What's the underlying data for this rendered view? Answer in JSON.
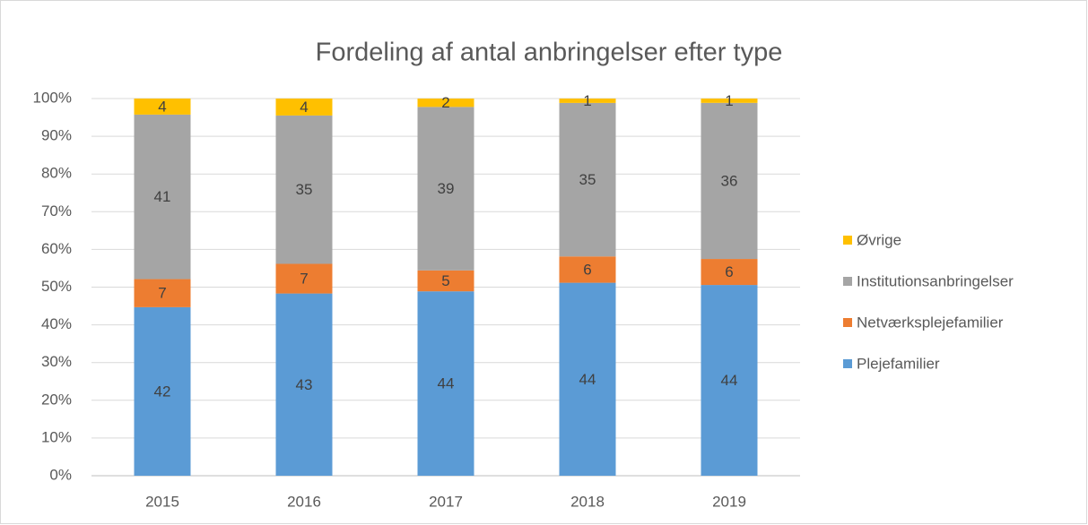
{
  "chart_data": {
    "type": "bar",
    "stacking": "percent",
    "title": "Fordeling af antal anbringelser efter type",
    "categories": [
      "2015",
      "2016",
      "2017",
      "2018",
      "2019"
    ],
    "series": [
      {
        "name": "Plejefamilier",
        "color": "#5b9bd5",
        "values": [
          42,
          43,
          44,
          44,
          44
        ]
      },
      {
        "name": "Netværksplejefamilier",
        "color": "#ed7d31",
        "values": [
          7,
          7,
          5,
          6,
          6
        ]
      },
      {
        "name": "Institutionsanbringelser",
        "color": "#a5a5a5",
        "values": [
          41,
          35,
          39,
          35,
          36
        ]
      },
      {
        "name": "Øvrige",
        "color": "#ffc000",
        "values": [
          4,
          4,
          2,
          1,
          1
        ]
      }
    ],
    "ylim": [
      0,
      100
    ],
    "yticks": [
      {
        "value": 0,
        "label": "0%"
      },
      {
        "value": 10,
        "label": "10%"
      },
      {
        "value": 20,
        "label": "20%"
      },
      {
        "value": 30,
        "label": "30%"
      },
      {
        "value": 40,
        "label": "40%"
      },
      {
        "value": 50,
        "label": "50%"
      },
      {
        "value": 60,
        "label": "60%"
      },
      {
        "value": 70,
        "label": "70%"
      },
      {
        "value": 80,
        "label": "80%"
      },
      {
        "value": 90,
        "label": "90%"
      },
      {
        "value": 100,
        "label": "100%"
      }
    ],
    "grid": true,
    "legend": "right"
  }
}
